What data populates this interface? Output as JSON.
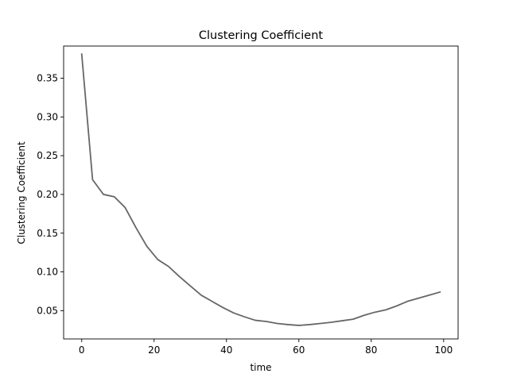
{
  "chart_data": {
    "type": "line",
    "title": "Clustering Coefficient",
    "xlabel": "time",
    "ylabel": "Clustering Coefficient",
    "xlim": [
      -5,
      104
    ],
    "ylim": [
      0.0135,
      0.3915
    ],
    "x_ticks": [
      0,
      20,
      40,
      60,
      80,
      100
    ],
    "x_tick_labels": [
      "0",
      "20",
      "40",
      "60",
      "80",
      "100"
    ],
    "y_ticks": [
      0.05,
      0.1,
      0.15,
      0.2,
      0.25,
      0.3,
      0.35
    ],
    "y_tick_labels": [
      "0.05",
      "0.10",
      "0.15",
      "0.20",
      "0.25",
      "0.30",
      "0.35"
    ],
    "grid": false,
    "legend": "none",
    "line_color": "#666666",
    "series": [
      {
        "x": [
          0,
          3,
          6,
          9,
          12,
          15,
          18,
          21,
          24,
          27,
          30,
          33,
          36,
          39,
          42,
          45,
          48,
          51,
          54,
          57,
          60,
          63,
          66,
          69,
          72,
          75,
          78,
          81,
          84,
          87,
          90,
          93,
          96,
          99
        ],
        "y": [
          0.381,
          0.219,
          0.2,
          0.197,
          0.183,
          0.157,
          0.133,
          0.116,
          0.107,
          0.094,
          0.082,
          0.07,
          0.062,
          0.054,
          0.047,
          0.042,
          0.0375,
          0.036,
          0.0335,
          0.032,
          0.031,
          0.032,
          0.0335,
          0.035,
          0.037,
          0.039,
          0.044,
          0.048,
          0.051,
          0.056,
          0.062,
          0.066,
          0.07,
          0.074
        ]
      }
    ]
  }
}
